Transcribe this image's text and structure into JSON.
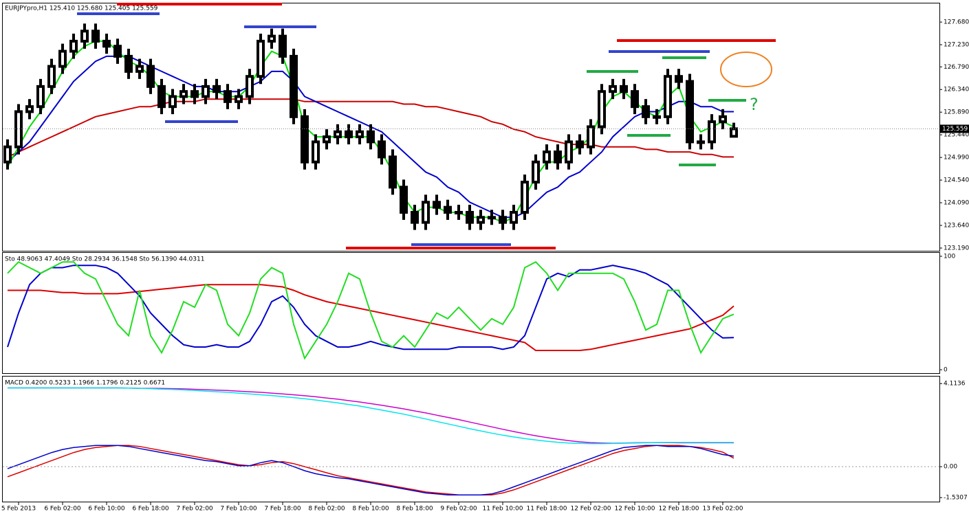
{
  "chart_data": [
    {
      "type": "candlestick",
      "title": "EURJPYpro,H1  125.410 125.680 125.405 125.559",
      "categories": [
        null,
        "5 Feb 2013",
        null,
        null,
        null,
        "6 Feb 02:00",
        null,
        null,
        null,
        "6 Feb 10:00",
        null,
        null,
        null,
        "6 Feb 18:00",
        null,
        null,
        null,
        "7 Feb 02:00",
        null,
        null,
        null,
        "7 Feb 10:00",
        null,
        null,
        null,
        "7 Feb 18:00",
        null,
        null,
        null,
        "8 Feb 02:00",
        null,
        null,
        null,
        "8 Feb 10:00",
        null,
        null,
        null,
        "8 Feb 18:00",
        null,
        null,
        null,
        "9 Feb 02:00",
        null,
        null,
        null,
        "11 Feb 10:00",
        null,
        null,
        null,
        "11 Feb 18:00",
        null,
        null,
        null,
        "12 Feb 02:00",
        null,
        null,
        null,
        "12 Feb 10:00",
        null,
        null,
        null,
        "12 Feb 18:00",
        null,
        null,
        null,
        "13 Feb 02:00",
        null
      ],
      "open": [
        124.9,
        125.2,
        125.9,
        126.0,
        126.4,
        126.8,
        127.1,
        127.3,
        127.5,
        127.3,
        127.2,
        127.0,
        126.7,
        126.8,
        126.4,
        126.0,
        126.2,
        126.3,
        126.2,
        126.4,
        126.3,
        126.1,
        126.2,
        126.6,
        127.3,
        127.4,
        127.0,
        125.8,
        124.9,
        125.3,
        125.4,
        125.5,
        125.4,
        125.5,
        125.3,
        125.0,
        124.4,
        123.9,
        123.7,
        124.1,
        124.0,
        123.9,
        123.9,
        123.7,
        123.8,
        123.8,
        123.7,
        123.9,
        124.5,
        124.9,
        125.1,
        124.9,
        125.3,
        125.2,
        125.6,
        126.3,
        126.4,
        126.3,
        126.0,
        125.8,
        125.8,
        126.6,
        126.5,
        125.3,
        125.3,
        125.7,
        125.41
      ],
      "high": [
        125.35,
        126.05,
        126.15,
        126.55,
        126.95,
        127.25,
        127.45,
        127.65,
        127.65,
        127.45,
        127.35,
        127.15,
        126.95,
        126.95,
        126.55,
        126.35,
        126.45,
        126.45,
        126.55,
        126.55,
        126.45,
        126.35,
        126.75,
        127.45,
        127.55,
        127.55,
        127.15,
        125.95,
        125.45,
        125.55,
        125.65,
        125.65,
        125.65,
        125.65,
        125.45,
        125.15,
        124.55,
        124.05,
        124.25,
        124.25,
        124.15,
        124.05,
        124.05,
        123.95,
        123.95,
        123.95,
        124.05,
        124.65,
        125.05,
        125.25,
        125.25,
        125.45,
        125.45,
        125.75,
        126.45,
        126.55,
        126.55,
        126.45,
        126.15,
        125.95,
        126.75,
        126.75,
        126.65,
        125.45,
        125.85,
        125.95,
        125.68
      ],
      "low": [
        124.75,
        125.05,
        125.75,
        125.85,
        126.25,
        126.65,
        126.95,
        127.15,
        127.15,
        127.05,
        126.85,
        126.55,
        126.55,
        126.25,
        125.85,
        125.85,
        126.05,
        126.05,
        126.05,
        126.15,
        125.95,
        125.95,
        126.05,
        126.45,
        127.15,
        126.85,
        125.65,
        124.75,
        124.75,
        125.15,
        125.25,
        125.25,
        125.25,
        125.15,
        124.85,
        124.25,
        123.75,
        123.55,
        123.55,
        123.85,
        123.75,
        123.75,
        123.55,
        123.55,
        123.65,
        123.55,
        123.55,
        123.75,
        124.35,
        124.75,
        124.75,
        124.75,
        125.05,
        125.05,
        125.45,
        126.15,
        126.15,
        125.85,
        125.65,
        125.65,
        125.65,
        126.35,
        125.15,
        125.15,
        125.15,
        125.55,
        125.405
      ],
      "close": [
        125.2,
        125.9,
        126.0,
        126.4,
        126.8,
        127.1,
        127.3,
        127.5,
        127.3,
        127.2,
        127.0,
        126.7,
        126.8,
        126.4,
        126.0,
        126.2,
        126.3,
        126.2,
        126.4,
        126.3,
        126.1,
        126.2,
        126.6,
        127.3,
        127.4,
        127.0,
        125.8,
        124.9,
        125.3,
        125.4,
        125.5,
        125.4,
        125.5,
        125.3,
        125.0,
        124.4,
        123.9,
        123.7,
        124.1,
        124.0,
        123.9,
        123.9,
        123.7,
        123.8,
        123.8,
        123.7,
        123.9,
        124.5,
        124.9,
        125.1,
        124.9,
        125.3,
        125.2,
        125.6,
        126.3,
        126.4,
        126.3,
        126.0,
        125.8,
        125.8,
        126.6,
        126.5,
        125.3,
        125.3,
        125.7,
        125.8,
        125.559
      ],
      "up_color": "#ffffff",
      "down_color": "#000000",
      "series": [
        {
          "color": "#cc0000",
          "values": [
            125.0,
            125.1,
            125.2,
            125.3,
            125.4,
            125.5,
            125.6,
            125.7,
            125.8,
            125.85,
            125.9,
            125.95,
            126.0,
            126.0,
            126.05,
            126.1,
            126.1,
            126.1,
            126.15,
            126.15,
            126.15,
            126.15,
            126.15,
            126.15,
            126.15,
            126.15,
            126.15,
            126.1,
            126.1,
            126.1,
            126.1,
            126.1,
            126.1,
            126.1,
            126.1,
            126.1,
            126.05,
            126.05,
            126.0,
            126.0,
            125.95,
            125.9,
            125.85,
            125.8,
            125.7,
            125.65,
            125.55,
            125.5,
            125.4,
            125.35,
            125.3,
            125.25,
            125.25,
            125.25,
            125.2,
            125.2,
            125.2,
            125.2,
            125.15,
            125.15,
            125.1,
            125.1,
            125.1,
            125.05,
            125.05,
            125.0,
            125.0
          ]
        },
        {
          "color": "#0000cc",
          "values": [
            124.9,
            125.1,
            125.3,
            125.6,
            125.9,
            126.2,
            126.5,
            126.7,
            126.9,
            127.0,
            127.0,
            127.0,
            126.9,
            126.8,
            126.7,
            126.6,
            126.5,
            126.4,
            126.4,
            126.3,
            126.3,
            126.3,
            126.4,
            126.5,
            126.7,
            126.7,
            126.5,
            126.2,
            126.1,
            126.0,
            125.9,
            125.8,
            125.7,
            125.6,
            125.5,
            125.3,
            125.1,
            124.9,
            124.7,
            124.6,
            124.4,
            124.3,
            124.1,
            124.0,
            123.9,
            123.8,
            123.8,
            123.9,
            124.1,
            124.3,
            124.4,
            124.6,
            124.7,
            124.9,
            125.1,
            125.4,
            125.6,
            125.8,
            125.9,
            125.9,
            126.0,
            126.1,
            126.1,
            126.0,
            126.0,
            125.9,
            125.9
          ]
        },
        {
          "color": "#00dd00",
          "values": [
            124.8,
            125.2,
            125.6,
            125.9,
            126.3,
            126.7,
            127.0,
            127.2,
            127.3,
            127.3,
            127.1,
            126.9,
            126.8,
            126.6,
            126.3,
            126.2,
            126.2,
            126.2,
            126.3,
            126.3,
            126.2,
            126.2,
            126.4,
            126.8,
            127.1,
            127.0,
            126.4,
            125.6,
            125.4,
            125.4,
            125.4,
            125.4,
            125.4,
            125.4,
            125.1,
            124.7,
            124.2,
            123.9,
            124.0,
            124.0,
            123.9,
            123.9,
            123.8,
            123.8,
            123.8,
            123.7,
            123.8,
            124.2,
            124.6,
            124.9,
            124.9,
            125.1,
            125.2,
            125.4,
            125.9,
            126.2,
            126.3,
            126.1,
            125.9,
            125.8,
            126.2,
            126.4,
            125.8,
            125.5,
            125.6,
            125.7,
            125.6
          ]
        }
      ],
      "ylim": [
        123.135,
        128.05
      ],
      "yticks": [
        {
          "value": 123.19,
          "label": "123.190"
        },
        {
          "value": 123.64,
          "label": "123.640"
        },
        {
          "value": 124.09,
          "label": "124.090"
        },
        {
          "value": 124.54,
          "label": "124.540"
        },
        {
          "value": 124.99,
          "label": "124.990"
        },
        {
          "value": 125.44,
          "label": "125.440"
        },
        {
          "value": 125.89,
          "label": "125.890"
        },
        {
          "value": 126.34,
          "label": "126.340"
        },
        {
          "value": 126.79,
          "label": "126.790"
        },
        {
          "value": 127.23,
          "label": "127.230"
        },
        {
          "value": 127.68,
          "label": "127.680"
        }
      ],
      "last_price": {
        "value": 125.559,
        "label": "125.559"
      },
      "annotation": "?"
    },
    {
      "type": "line",
      "title": "Sto 48.9063 47.4049  Sto 28.2934 36.1548  Sto 56.1390 44.0311",
      "series": [
        {
          "color": "#dd0000",
          "values": [
            70,
            70,
            70,
            70,
            69,
            68,
            68,
            67,
            67,
            67,
            67,
            68,
            69,
            70,
            71,
            72,
            73,
            74,
            75,
            75,
            75,
            75,
            75,
            75,
            74,
            73,
            70,
            66,
            63,
            60,
            58,
            56,
            54,
            52,
            50,
            48,
            46,
            44,
            42,
            40,
            38,
            36,
            34,
            32,
            30,
            28,
            26,
            24,
            17,
            17,
            17,
            17,
            17,
            18,
            20,
            22,
            24,
            26,
            28,
            30,
            32,
            34,
            36,
            40,
            44,
            48,
            56.139
          ]
        },
        {
          "color": "#0000cc",
          "values": [
            20,
            50,
            75,
            85,
            90,
            90,
            92,
            92,
            92,
            90,
            85,
            75,
            65,
            50,
            40,
            30,
            22,
            20,
            20,
            22,
            20,
            20,
            25,
            40,
            60,
            65,
            55,
            40,
            30,
            25,
            20,
            20,
            22,
            25,
            22,
            20,
            18,
            18,
            18,
            18,
            18,
            20,
            20,
            20,
            20,
            18,
            20,
            30,
            55,
            80,
            85,
            82,
            88,
            88,
            90,
            92,
            90,
            88,
            85,
            80,
            75,
            65,
            55,
            45,
            35,
            28,
            28.2934
          ]
        },
        {
          "color": "#22dd22",
          "values": [
            85,
            95,
            90,
            85,
            90,
            95,
            95,
            85,
            80,
            60,
            40,
            30,
            70,
            30,
            15,
            35,
            60,
            55,
            75,
            70,
            40,
            30,
            50,
            80,
            90,
            85,
            40,
            10,
            25,
            40,
            60,
            85,
            80,
            50,
            25,
            20,
            30,
            20,
            35,
            50,
            45,
            55,
            45,
            35,
            45,
            40,
            55,
            90,
            95,
            85,
            70,
            85,
            85,
            85,
            85,
            85,
            80,
            60,
            35,
            40,
            70,
            70,
            40,
            15,
            30,
            45,
            48.9063
          ]
        }
      ],
      "ylim": [
        -3,
        103
      ],
      "yticks": [
        0,
        100
      ]
    },
    {
      "type": "line",
      "title": "MACD 0.4200 0.5233 1.1966 1.1796 0.2125 0.6671",
      "series": [
        {
          "color": "#cc00cc",
          "values": [
            3.9,
            3.9,
            3.9,
            3.9,
            3.9,
            3.9,
            3.9,
            3.9,
            3.9,
            3.9,
            3.9,
            3.89,
            3.88,
            3.88,
            3.87,
            3.86,
            3.85,
            3.83,
            3.81,
            3.79,
            3.77,
            3.74,
            3.71,
            3.68,
            3.64,
            3.6,
            3.56,
            3.51,
            3.46,
            3.4,
            3.34,
            3.27,
            3.2,
            3.12,
            3.04,
            2.95,
            2.86,
            2.76,
            2.66,
            2.55,
            2.44,
            2.33,
            2.21,
            2.09,
            1.97,
            1.85,
            1.74,
            1.63,
            1.53,
            1.44,
            1.36,
            1.29,
            1.23,
            1.19,
            1.17,
            1.16,
            1.17,
            1.18,
            1.19,
            1.19,
            1.19,
            1.18,
            1.18,
            1.18,
            1.18,
            1.18,
            1.18
          ]
        },
        {
          "color": "#00e5ee",
          "values": [
            3.9,
            3.9,
            3.9,
            3.9,
            3.9,
            3.9,
            3.9,
            3.9,
            3.9,
            3.9,
            3.9,
            3.89,
            3.88,
            3.86,
            3.84,
            3.82,
            3.8,
            3.77,
            3.74,
            3.71,
            3.68,
            3.64,
            3.6,
            3.56,
            3.52,
            3.47,
            3.42,
            3.36,
            3.3,
            3.23,
            3.16,
            3.08,
            3.0,
            2.9,
            2.8,
            2.7,
            2.6,
            2.48,
            2.36,
            2.24,
            2.12,
            2.0,
            1.88,
            1.77,
            1.66,
            1.56,
            1.47,
            1.39,
            1.32,
            1.26,
            1.21,
            1.17,
            1.15,
            1.14,
            1.14,
            1.15,
            1.16,
            1.17,
            1.18,
            1.19,
            1.2,
            1.2,
            1.2,
            1.2,
            1.2,
            1.2,
            1.2
          ]
        },
        {
          "color": "#dd0000",
          "values": [
            -0.5,
            -0.3,
            -0.1,
            0.1,
            0.3,
            0.5,
            0.7,
            0.85,
            0.95,
            1.0,
            1.05,
            1.05,
            1.0,
            0.9,
            0.8,
            0.7,
            0.6,
            0.5,
            0.4,
            0.3,
            0.2,
            0.1,
            0.05,
            0.1,
            0.2,
            0.25,
            0.15,
            0.0,
            -0.15,
            -0.3,
            -0.45,
            -0.55,
            -0.65,
            -0.75,
            -0.85,
            -0.95,
            -1.05,
            -1.15,
            -1.25,
            -1.3,
            -1.35,
            -1.4,
            -1.4,
            -1.4,
            -1.4,
            -1.3,
            -1.15,
            -0.95,
            -0.75,
            -0.55,
            -0.35,
            -0.15,
            0.05,
            0.25,
            0.45,
            0.65,
            0.8,
            0.9,
            1.0,
            1.05,
            1.05,
            1.05,
            1.0,
            0.95,
            0.85,
            0.72,
            0.42
          ]
        },
        {
          "color": "#0000cc",
          "values": [
            -0.1,
            0.1,
            0.3,
            0.5,
            0.7,
            0.85,
            0.95,
            1.0,
            1.05,
            1.05,
            1.05,
            1.0,
            0.9,
            0.8,
            0.7,
            0.6,
            0.5,
            0.4,
            0.3,
            0.25,
            0.15,
            0.05,
            0.05,
            0.2,
            0.3,
            0.2,
            0.0,
            -0.2,
            -0.35,
            -0.45,
            -0.55,
            -0.6,
            -0.7,
            -0.8,
            -0.9,
            -1.0,
            -1.1,
            -1.2,
            -1.3,
            -1.35,
            -1.4,
            -1.4,
            -1.4,
            -1.4,
            -1.35,
            -1.2,
            -1.0,
            -0.8,
            -0.6,
            -0.4,
            -0.2,
            0.0,
            0.2,
            0.4,
            0.6,
            0.8,
            0.95,
            1.0,
            1.05,
            1.05,
            1.0,
            1.0,
            1.0,
            0.9,
            0.75,
            0.6,
            0.52
          ]
        }
      ],
      "ylim": [
        -1.73,
        4.46
      ],
      "yticks": [
        {
          "value": 0,
          "label": "0.00"
        },
        4.1136,
        -1.5307
      ]
    }
  ]
}
